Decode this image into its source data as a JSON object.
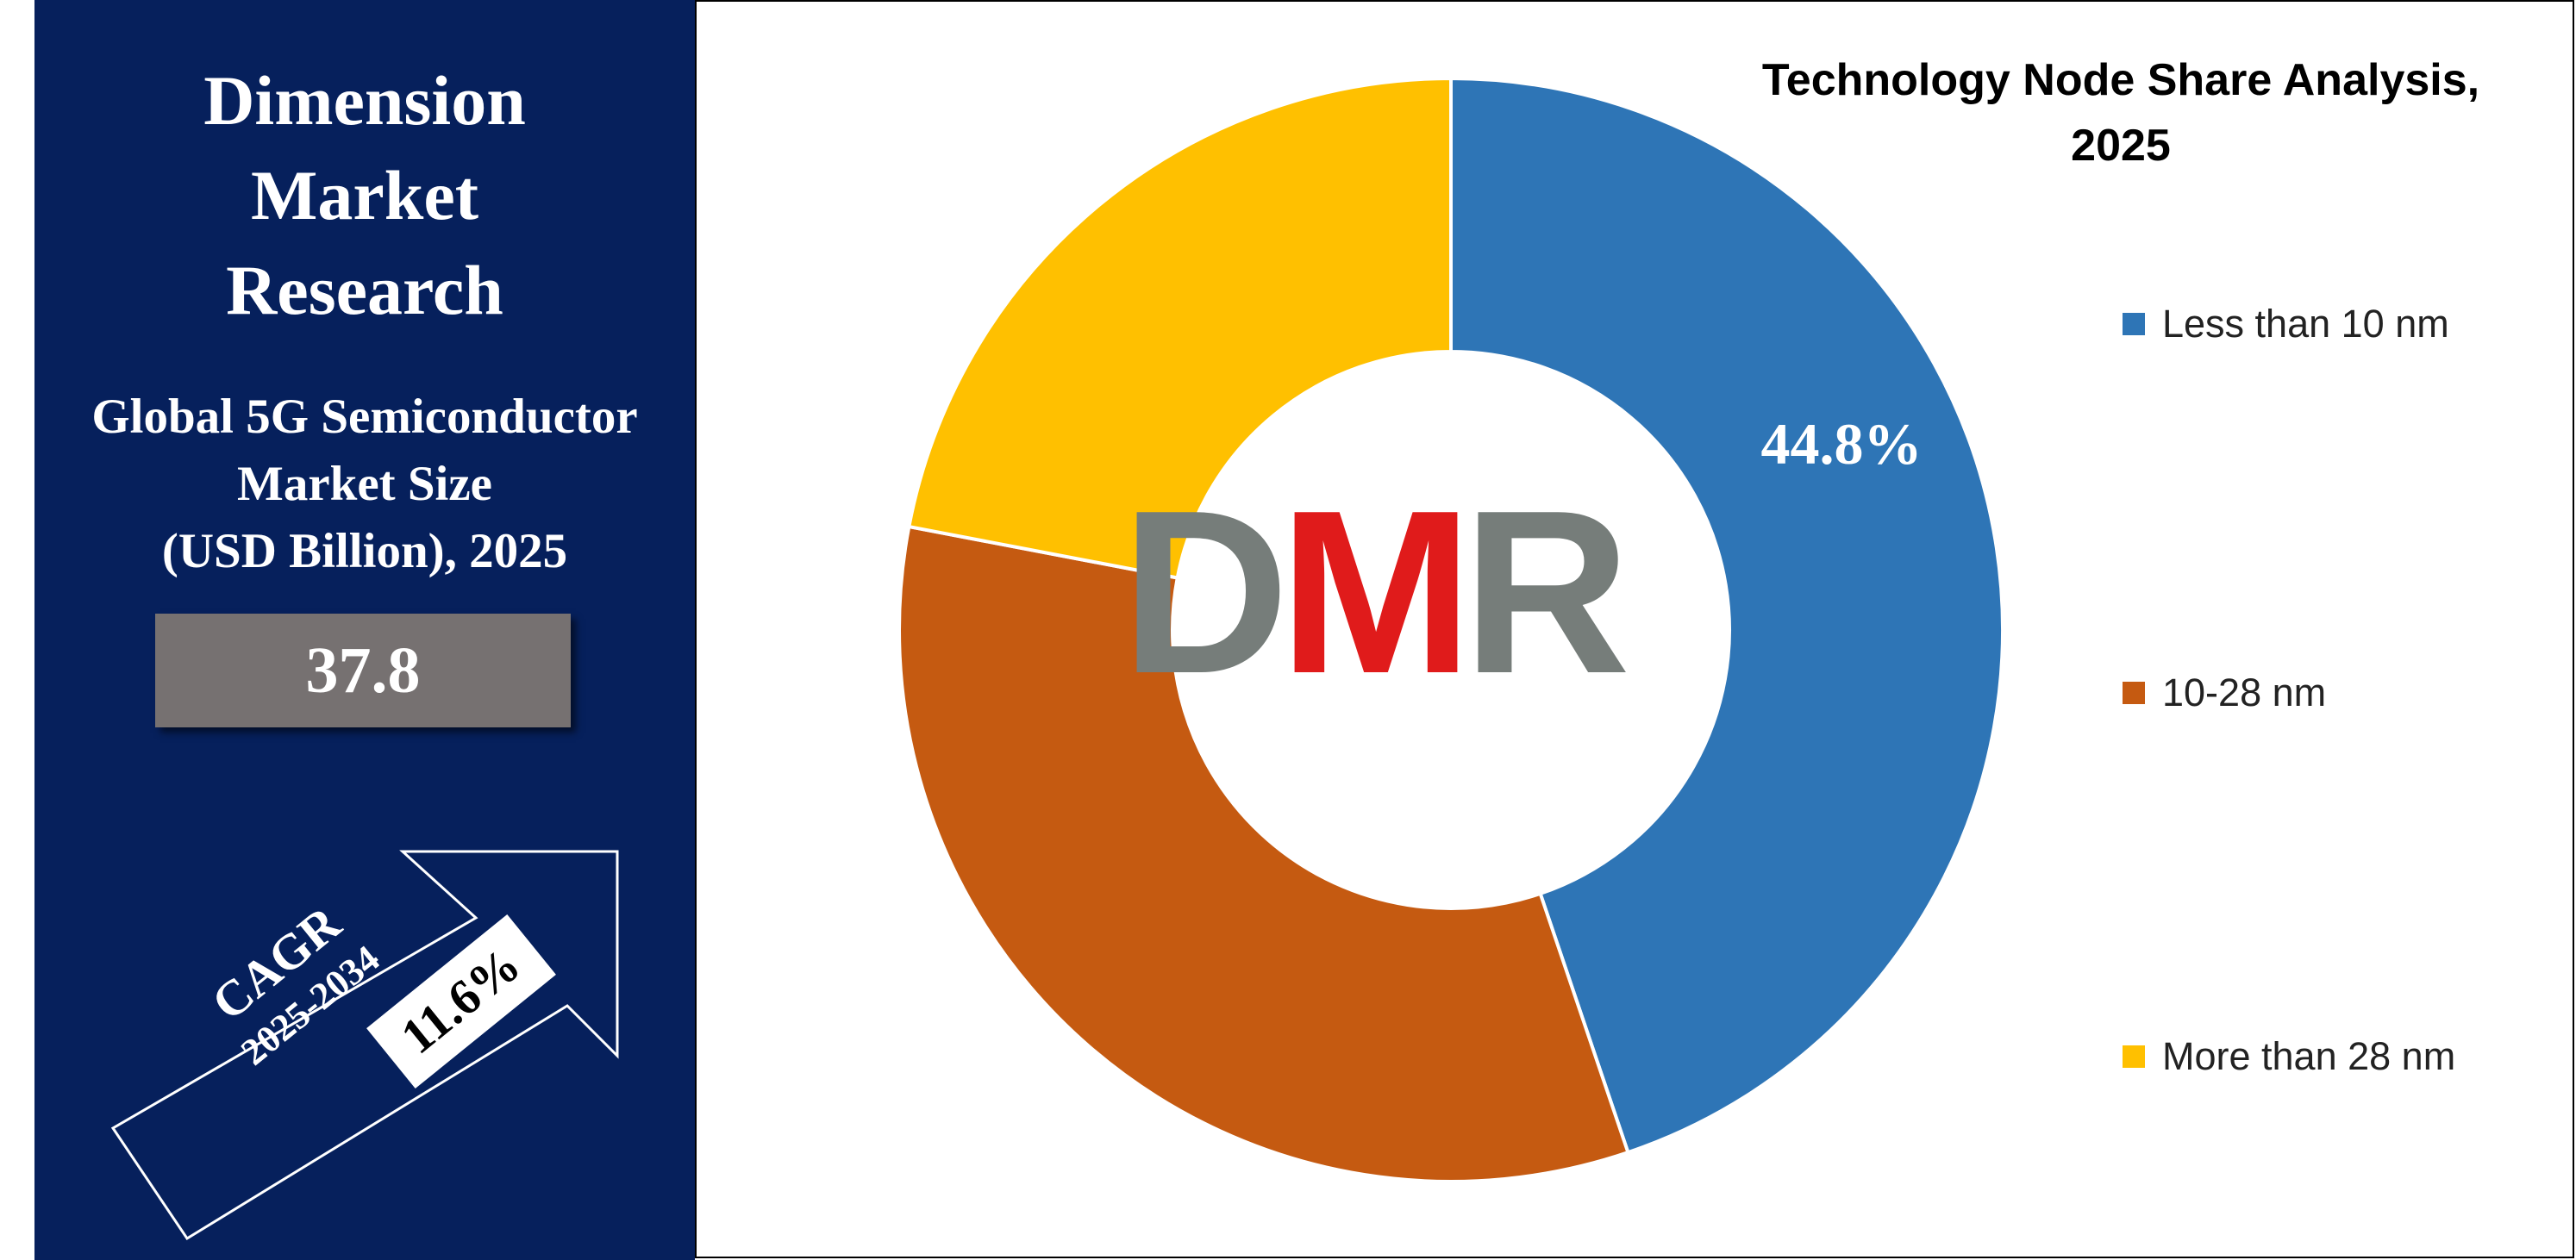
{
  "left_panel": {
    "brand_lines": [
      "Dimension",
      "Market",
      "Research"
    ],
    "market_title_lines": [
      "Global 5G Semiconductor",
      "Market Size",
      "(USD Billion), 2025"
    ],
    "market_value": "37.8",
    "cagr_label": "CAGR",
    "cagr_period": "2025-2034",
    "cagr_value": "11.6%"
  },
  "logo": {
    "text": "DMR",
    "colors": {
      "gray": "#767d7a",
      "red": "#e01b1b"
    }
  },
  "colors": {
    "left_panel_bg": "#06205c",
    "value_box_bg": "#767171"
  },
  "chart_data": {
    "type": "pie",
    "subtype": "donut",
    "title_lines": [
      "Technology Node Share Analysis,",
      "2025"
    ],
    "categories": [
      "Less than 10 nm",
      "10-28 nm",
      "More than 28 nm"
    ],
    "values": [
      44.8,
      33.2,
      22.0
    ],
    "colors": [
      "#2e75b6",
      "#c55a11",
      "#ffc000"
    ],
    "data_labels": [
      "44.8%",
      "",
      ""
    ],
    "legend_position": "right"
  }
}
